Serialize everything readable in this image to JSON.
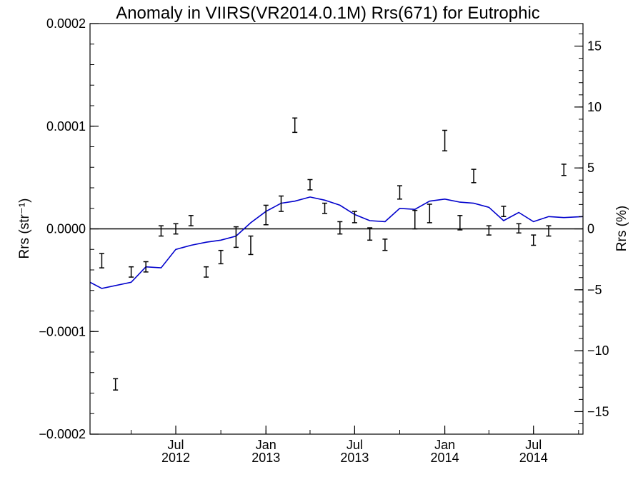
{
  "chart_data": {
    "type": "line",
    "title": "Anomaly in VIIRS(VR2014.0.1M) Rrs(671) for Eutrophic",
    "ylabel_left": "Rrs (str⁻¹)",
    "ylabel_right": "Rrs (%)",
    "xlim": [
      "2012-01-08",
      "2014-10-10"
    ],
    "ylim_left": [
      -0.0002,
      0.0002
    ],
    "ylim_right": [
      -16.85,
      16.85
    ],
    "yticks_left": [
      {
        "value": -0.0002,
        "label": "−0.0002"
      },
      {
        "value": -0.0001,
        "label": "−0.0001"
      },
      {
        "value": 0,
        "label": "0.0000"
      },
      {
        "value": 0.0001,
        "label": "0.0001"
      },
      {
        "value": 0.0002,
        "label": "0.0002"
      }
    ],
    "yticks_right": [
      {
        "value": -15,
        "label": "−15"
      },
      {
        "value": -10,
        "label": "−10"
      },
      {
        "value": -5,
        "label": "−5"
      },
      {
        "value": 0,
        "label": "0"
      },
      {
        "value": 5,
        "label": "5"
      },
      {
        "value": 10,
        "label": "10"
      },
      {
        "value": 15,
        "label": "15"
      }
    ],
    "xticks": [
      {
        "date": "2012-07-01",
        "month": "Jul",
        "year": "2012"
      },
      {
        "date": "2013-01-01",
        "month": "Jan",
        "year": "2013"
      },
      {
        "date": "2013-07-01",
        "month": "Jul",
        "year": "2013"
      },
      {
        "date": "2014-01-01",
        "month": "Jan",
        "year": "2014"
      },
      {
        "date": "2014-07-01",
        "month": "Jul",
        "year": "2014"
      }
    ],
    "zero_line": true,
    "colors": {
      "line": "#0000cc",
      "errorbars": "#000000",
      "axes": "#000000"
    },
    "series": [
      {
        "kind": "errorbar",
        "points": [
          {
            "date": "2012-02-01",
            "low": -3.8e-05,
            "high": -2.4e-05
          },
          {
            "date": "2012-02-29",
            "low": -0.000157,
            "high": -0.000146
          },
          {
            "date": "2012-04-01",
            "low": -4.7e-05,
            "high": -3.7e-05
          },
          {
            "date": "2012-05-01",
            "low": -4.2e-05,
            "high": -3.2e-05
          },
          {
            "date": "2012-06-01",
            "low": -7e-06,
            "high": 3e-06
          },
          {
            "date": "2012-07-01",
            "low": -5e-06,
            "high": 5e-06
          },
          {
            "date": "2012-08-01",
            "low": 3e-06,
            "high": 1.3e-05
          },
          {
            "date": "2012-09-01",
            "low": -4.7e-05,
            "high": -3.7e-05
          },
          {
            "date": "2012-10-01",
            "low": -3.4e-05,
            "high": -2.1e-05
          },
          {
            "date": "2012-11-01",
            "low": -1.8e-05,
            "high": 2e-06
          },
          {
            "date": "2012-12-01",
            "low": -2.5e-05,
            "high": -7e-06
          },
          {
            "date": "2013-01-01",
            "low": 4e-06,
            "high": 2.3e-05
          },
          {
            "date": "2013-02-01",
            "low": 1.7e-05,
            "high": 3.2e-05
          },
          {
            "date": "2013-03-01",
            "low": 9.4e-05,
            "high": 0.000108
          },
          {
            "date": "2013-04-01",
            "low": 3.8e-05,
            "high": 4.8e-05
          },
          {
            "date": "2013-05-01",
            "low": 1.5e-05,
            "high": 2.5e-05
          },
          {
            "date": "2013-06-01",
            "low": -5e-06,
            "high": 7e-06
          },
          {
            "date": "2013-07-01",
            "low": 6e-06,
            "high": 1.7e-05
          },
          {
            "date": "2013-08-01",
            "low": -1.1e-05,
            "high": 1e-06
          },
          {
            "date": "2013-09-01",
            "low": -2.1e-05,
            "high": -1e-05
          },
          {
            "date": "2013-10-01",
            "low": 2.9e-05,
            "high": 4.2e-05
          },
          {
            "date": "2013-11-01",
            "low": 0.0,
            "high": 1.8e-05
          },
          {
            "date": "2013-12-01",
            "low": 6e-06,
            "high": 2.4e-05
          },
          {
            "date": "2014-01-01",
            "low": 7.6e-05,
            "high": 9.6e-05
          },
          {
            "date": "2014-02-01",
            "low": -1e-06,
            "high": 1.3e-05
          },
          {
            "date": "2014-03-01",
            "low": 4.5e-05,
            "high": 5.8e-05
          },
          {
            "date": "2014-04-01",
            "low": -6e-06,
            "high": 3e-06
          },
          {
            "date": "2014-05-01",
            "low": 1.2e-05,
            "high": 2.2e-05
          },
          {
            "date": "2014-06-01",
            "low": -4e-06,
            "high": 5e-06
          },
          {
            "date": "2014-07-01",
            "low": -1.6e-05,
            "high": -6e-06
          },
          {
            "date": "2014-08-01",
            "low": -7e-06,
            "high": 3e-06
          },
          {
            "date": "2014-09-01",
            "low": 5.2e-05,
            "high": 6.3e-05
          }
        ]
      },
      {
        "kind": "line",
        "points": [
          {
            "date": "2012-01-08",
            "value": -5.2e-05
          },
          {
            "date": "2012-02-01",
            "value": -5.8e-05
          },
          {
            "date": "2012-04-01",
            "value": -5.2e-05
          },
          {
            "date": "2012-05-01",
            "value": -3.7e-05
          },
          {
            "date": "2012-06-01",
            "value": -3.8e-05
          },
          {
            "date": "2012-07-01",
            "value": -2e-05
          },
          {
            "date": "2012-08-01",
            "value": -1.6e-05
          },
          {
            "date": "2012-09-01",
            "value": -1.3e-05
          },
          {
            "date": "2012-10-01",
            "value": -1.1e-05
          },
          {
            "date": "2012-11-01",
            "value": -7e-06
          },
          {
            "date": "2012-12-01",
            "value": 6e-06
          },
          {
            "date": "2013-01-01",
            "value": 1.7e-05
          },
          {
            "date": "2013-02-01",
            "value": 2.5e-05
          },
          {
            "date": "2013-03-01",
            "value": 2.7e-05
          },
          {
            "date": "2013-04-01",
            "value": 3.1e-05
          },
          {
            "date": "2013-05-01",
            "value": 2.8e-05
          },
          {
            "date": "2013-06-01",
            "value": 2.3e-05
          },
          {
            "date": "2013-07-01",
            "value": 1.4e-05
          },
          {
            "date": "2013-08-01",
            "value": 8e-06
          },
          {
            "date": "2013-09-01",
            "value": 7e-06
          },
          {
            "date": "2013-10-01",
            "value": 2e-05
          },
          {
            "date": "2013-11-01",
            "value": 1.9e-05
          },
          {
            "date": "2013-12-01",
            "value": 2.7e-05
          },
          {
            "date": "2014-01-01",
            "value": 2.9e-05
          },
          {
            "date": "2014-02-01",
            "value": 2.6e-05
          },
          {
            "date": "2014-03-01",
            "value": 2.5e-05
          },
          {
            "date": "2014-04-01",
            "value": 2.1e-05
          },
          {
            "date": "2014-05-01",
            "value": 8e-06
          },
          {
            "date": "2014-06-01",
            "value": 1.6e-05
          },
          {
            "date": "2014-07-01",
            "value": 7e-06
          },
          {
            "date": "2014-08-01",
            "value": 1.2e-05
          },
          {
            "date": "2014-09-01",
            "value": 1.1e-05
          },
          {
            "date": "2014-10-10",
            "value": 1.2e-05
          }
        ]
      }
    ]
  }
}
